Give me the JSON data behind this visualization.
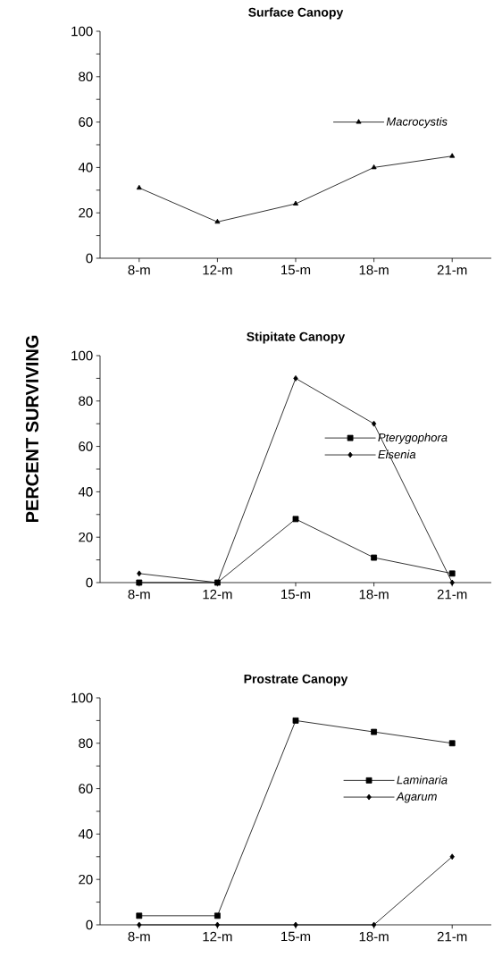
{
  "chart_data": [
    {
      "type": "line",
      "title": "Surface  Canopy",
      "categories": [
        "8-m",
        "12-m",
        "15-m",
        "18-m",
        "21-m"
      ],
      "ylim": [
        0,
        100
      ],
      "yticks": [
        0,
        {
          "value": 10,
          "label": null
        },
        20,
        {
          "value": 30,
          "label": null
        },
        40,
        {
          "value": 50,
          "label": null
        },
        60,
        {
          "value": 70,
          "label": null
        },
        80,
        {
          "value": 90,
          "label": null
        },
        100
      ],
      "legend": "right",
      "line_style": "solid",
      "series": [
        {
          "name": "Macrocystis",
          "color": "#000000",
          "marker": "triangle",
          "values": [
            31,
            16,
            24,
            40,
            45
          ]
        }
      ]
    },
    {
      "type": "line",
      "title": "Stipitate  Canopy",
      "ylabel": "PERCENT SURVIVING",
      "categories": [
        "8-m",
        "12-m",
        "15-m",
        "18-m",
        "21-m"
      ],
      "ylim": [
        0,
        100
      ],
      "yticks": [
        0,
        {
          "value": 10,
          "label": null
        },
        20,
        {
          "value": 30,
          "label": null
        },
        40,
        {
          "value": 50,
          "label": null
        },
        60,
        {
          "value": 70,
          "label": null
        },
        80,
        {
          "value": 90,
          "label": null
        },
        100
      ],
      "legend": "right",
      "line_style": "solid",
      "series": [
        {
          "name": "Pterygophora",
          "color": "#000000",
          "marker": "square",
          "values": [
            0,
            0,
            28,
            11,
            4
          ]
        },
        {
          "name": "Eisenia",
          "color": "#000000",
          "marker": "diamond",
          "values": [
            4,
            0,
            90,
            70,
            0
          ]
        }
      ]
    },
    {
      "type": "line",
      "title": "Prostrate  Canopy",
      "categories": [
        "8-m",
        "12-m",
        "15-m",
        "18-m",
        "21-m"
      ],
      "ylim": [
        0,
        100
      ],
      "yticks": [
        0,
        {
          "value": 10,
          "label": null
        },
        20,
        {
          "value": 30,
          "label": null
        },
        40,
        {
          "value": 50,
          "label": null
        },
        60,
        {
          "value": 70,
          "label": null
        },
        80,
        {
          "value": 90,
          "label": null
        },
        100
      ],
      "legend": "right",
      "line_style": "solid",
      "series": [
        {
          "name": "Laminaria",
          "color": "#000000",
          "marker": "square",
          "values": [
            4,
            4,
            90,
            85,
            80
          ]
        },
        {
          "name": "Agarum",
          "color": "#000000",
          "marker": "diamond",
          "values": [
            0,
            0,
            0,
            0,
            30
          ]
        }
      ]
    }
  ]
}
